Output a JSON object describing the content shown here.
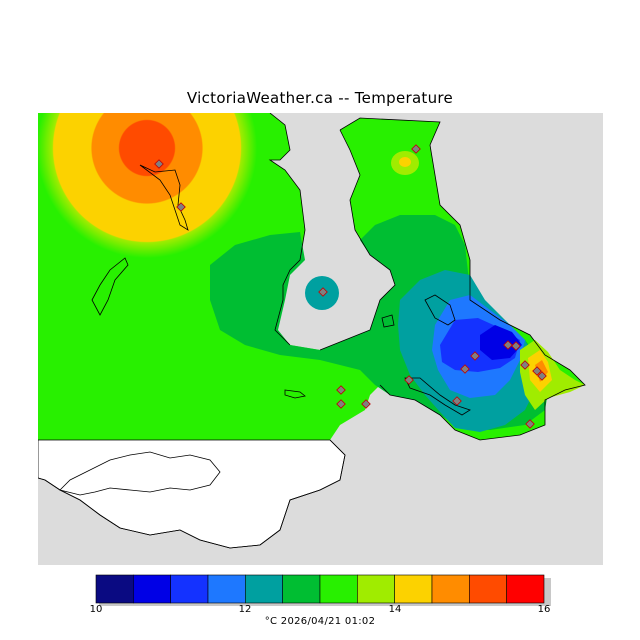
{
  "title": "VictoriaWeather.ca -- Temperature",
  "legend": {
    "labels": [
      "10",
      "12",
      "14",
      "16"
    ],
    "colors": [
      "#0a0a82",
      "#0000e6",
      "#1432ff",
      "#1e78ff",
      "#00a0a0",
      "#00be32",
      "#28f000",
      "#a0ec00",
      "#fcd200",
      "#ff8c00",
      "#ff4b00",
      "#ff0000"
    ],
    "footer": "°C  2026/04/21 01:02"
  },
  "map": {
    "background_colors": {
      "no_data": "#dcdcdc",
      "water_outside": "#ffffff"
    },
    "stations_count": 17
  }
}
